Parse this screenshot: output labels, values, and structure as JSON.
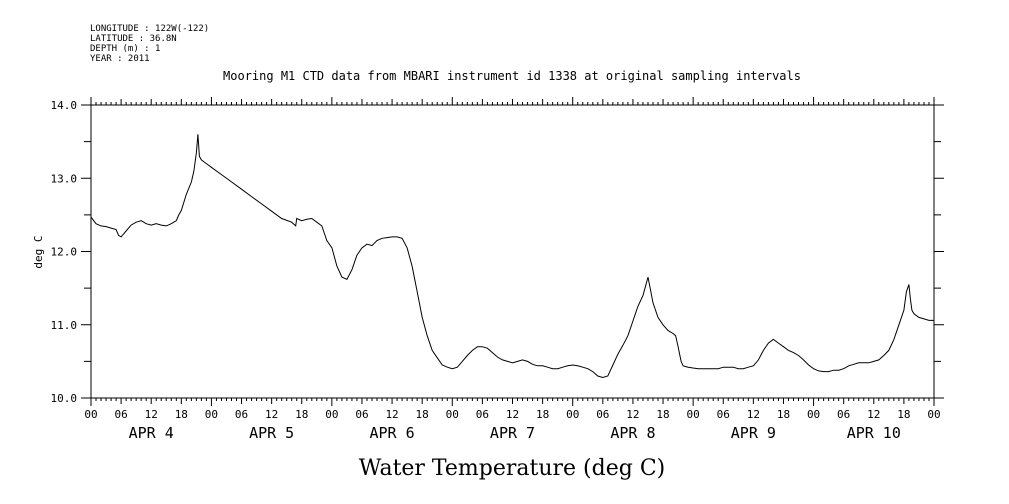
{
  "metadata": {
    "longitude": "LONGITUDE : 122W(-122)",
    "latitude": "LATITUDE : 36.8N",
    "depth": "DEPTH (m) : 1",
    "year": "YEAR : 2011"
  },
  "chart_data": {
    "type": "line",
    "title": "Mooring M1 CTD data from MBARI instrument id 1338 at original sampling intervals",
    "ylabel": "deg C",
    "xlabel": "Water Temperature (deg C)",
    "ylim": [
      10.0,
      14.0
    ],
    "yticks": [
      10.0,
      11.0,
      12.0,
      13.0,
      14.0
    ],
    "ytick_labels": [
      "10.0",
      "11.0",
      "12.0",
      "13.0",
      "14.0"
    ],
    "xlim_hours": [
      0,
      168
    ],
    "x_tick_labels": [
      "00",
      "06",
      "12",
      "18",
      "00",
      "06",
      "12",
      "18",
      "00",
      "06",
      "12",
      "18",
      "00",
      "06",
      "12",
      "18",
      "00",
      "06",
      "12",
      "18",
      "00",
      "06",
      "12",
      "18",
      "00",
      "06",
      "12",
      "18",
      "00"
    ],
    "day_labels": [
      "APR 4",
      "APR 5",
      "APR 6",
      "APR 7",
      "APR 8",
      "APR 9",
      "APR 10"
    ],
    "series": [
      {
        "x": [
          0,
          1,
          2,
          3,
          4,
          5,
          5.5,
          6,
          7,
          8,
          9,
          10,
          11,
          12,
          13,
          14,
          15,
          16,
          17,
          17.5,
          18,
          19,
          20,
          20.5,
          21,
          21.3,
          21.6,
          22,
          23,
          24,
          26,
          28,
          30,
          32,
          34,
          36,
          38,
          40,
          40.8,
          41,
          42,
          43,
          44,
          45,
          46,
          47,
          48,
          49,
          50,
          51,
          52,
          53,
          54,
          55,
          56,
          57,
          58,
          59,
          60,
          61,
          62,
          63,
          64,
          65,
          66,
          67,
          68,
          69,
          70,
          71,
          72,
          73,
          74,
          75,
          76,
          77,
          78,
          79,
          80,
          81,
          82,
          83,
          84,
          85,
          86,
          87,
          88,
          89,
          90,
          91,
          92,
          93,
          94,
          95,
          96,
          97,
          98,
          99,
          100,
          101,
          102,
          103,
          104,
          105,
          106,
          107,
          108,
          109,
          110,
          111,
          112,
          113,
          114,
          115,
          116,
          116.5,
          117,
          117.3,
          117.6,
          118,
          119,
          120,
          121,
          122,
          123,
          124,
          125,
          126,
          127,
          128,
          129,
          130,
          131,
          132,
          133,
          134,
          135,
          136,
          137,
          138,
          139,
          140,
          141,
          142,
          143,
          144,
          145,
          146,
          147,
          148,
          149,
          150,
          151,
          152,
          153,
          154,
          155,
          156,
          157,
          158,
          159,
          160,
          161,
          162,
          162.5,
          163,
          163.3,
          163.6,
          164,
          165,
          166,
          167,
          168
        ],
        "y": [
          12.47,
          12.38,
          12.35,
          12.34,
          12.32,
          12.3,
          12.22,
          12.2,
          12.28,
          12.36,
          12.4,
          12.42,
          12.38,
          12.36,
          12.38,
          12.36,
          12.35,
          12.38,
          12.42,
          12.5,
          12.56,
          12.78,
          12.95,
          13.1,
          13.35,
          13.6,
          13.3,
          13.25,
          13.2,
          13.15,
          13.05,
          12.95,
          12.85,
          12.75,
          12.65,
          12.55,
          12.45,
          12.4,
          12.35,
          12.45,
          12.42,
          12.44,
          12.45,
          12.4,
          12.35,
          12.15,
          12.05,
          11.8,
          11.65,
          11.62,
          11.75,
          11.95,
          12.05,
          12.1,
          12.08,
          12.15,
          12.18,
          12.19,
          12.2,
          12.2,
          12.18,
          12.05,
          11.8,
          11.45,
          11.1,
          10.85,
          10.65,
          10.55,
          10.45,
          10.42,
          10.4,
          10.42,
          10.5,
          10.58,
          10.65,
          10.7,
          10.7,
          10.68,
          10.62,
          10.56,
          10.52,
          10.5,
          10.48,
          10.5,
          10.52,
          10.5,
          10.46,
          10.44,
          10.44,
          10.42,
          10.4,
          10.4,
          10.42,
          10.44,
          10.45,
          10.44,
          10.42,
          10.4,
          10.36,
          10.3,
          10.28,
          10.3,
          10.45,
          10.6,
          10.72,
          10.85,
          11.05,
          11.25,
          11.4,
          11.65,
          11.3,
          11.1,
          11.0,
          10.92,
          10.88,
          10.85,
          10.7,
          10.6,
          10.5,
          10.44,
          10.42,
          10.41,
          10.4,
          10.4,
          10.4,
          10.4,
          10.4,
          10.42,
          10.42,
          10.42,
          10.4,
          10.4,
          10.42,
          10.44,
          10.52,
          10.65,
          10.75,
          10.8,
          10.75,
          10.7,
          10.65,
          10.62,
          10.58,
          10.52,
          10.45,
          10.4,
          10.37,
          10.36,
          10.36,
          10.38,
          10.38,
          10.4,
          10.44,
          10.46,
          10.48,
          10.48,
          10.48,
          10.5,
          10.52,
          10.58,
          10.65,
          10.8,
          11.0,
          11.2,
          11.45,
          11.55,
          11.35,
          11.2,
          11.15,
          11.1,
          11.08,
          11.06,
          11.06
        ]
      }
    ]
  }
}
